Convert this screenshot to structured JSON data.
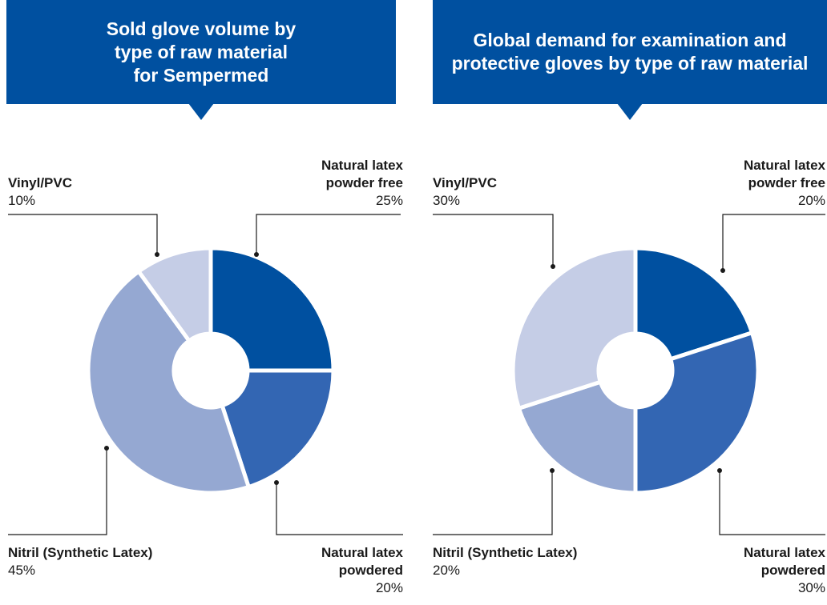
{
  "chart_data": [
    {
      "type": "pie",
      "title": "Sold glove volume by type of raw material for Sempermed",
      "categories": [
        "Natural latex powder free",
        "Natural latex powdered",
        "Nitril (Synthetic Latex)",
        "Vinyl/PVC"
      ],
      "values": [
        25,
        20,
        45,
        10
      ],
      "value_labels": [
        "25%",
        "20%",
        "45%",
        "10%"
      ],
      "colors": [
        "#0050a0",
        "#3366b3",
        "#95a8d2",
        "#c5cde6"
      ]
    },
    {
      "type": "pie",
      "title": "Global demand for examination and protective gloves by type of raw material",
      "categories": [
        "Natural latex powder free",
        "Natural latex powdered",
        "Nitril (Synthetic Latex)",
        "Vinyl/PVC"
      ],
      "values": [
        20,
        30,
        20,
        30
      ],
      "value_labels": [
        "20%",
        "30%",
        "20%",
        "30%"
      ],
      "colors": [
        "#0050a0",
        "#3366b3",
        "#95a8d2",
        "#c5cde6"
      ]
    }
  ]
}
